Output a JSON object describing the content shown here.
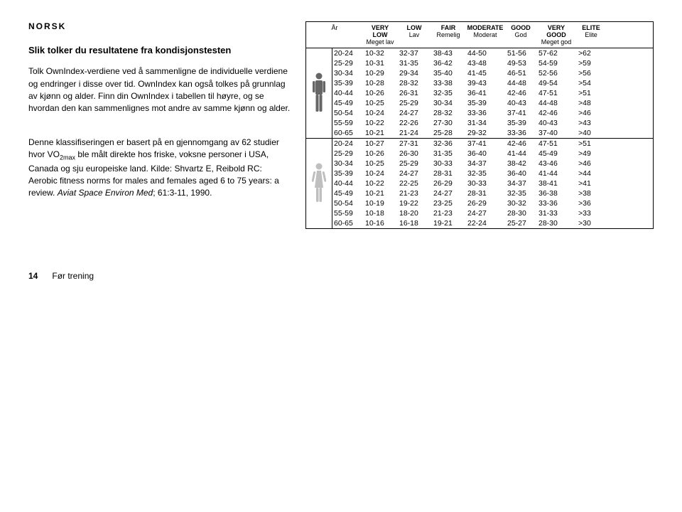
{
  "lang_label": "NORSK",
  "heading": "Slik tolker du resultatene fra kondisjonstesten",
  "para1": "Tolk OwnIndex-verdiene ved å sammenligne de individuelle verdiene og endringer i disse over tid. OwnIndex kan også tolkes på grunnlag av kjønn og alder. Finn din OwnIndex i tabellen til høyre, og se hvordan den kan sammenlignes mot andre av samme kjønn og alder.",
  "para2_pre": "Denne klassifiseringen er basert på en gjennomgang av 62 studier hvor VO",
  "para2_sub": "2max",
  "para2_post": " ble målt direkte hos friske, voksne personer i USA, Canada og sju europeiske land. Kilde: Shvartz E, Reibold RC: Aerobic fitness norms for males and females aged 6 to 75 years: a review.",
  "para2_italic": "Aviat Space Environ Med",
  "para2_tail": "; 61:3-11, 1990.",
  "footer_page": "14",
  "footer_text": "Før trening",
  "table": {
    "headers": [
      {
        "en": "",
        "no": "År",
        "key": "age"
      },
      {
        "en": "VERY LOW",
        "no": "Meget lav",
        "key": "vl"
      },
      {
        "en": "LOW",
        "no": "Lav",
        "key": "lo"
      },
      {
        "en": "FAIR",
        "no": "Remelig",
        "key": "fa"
      },
      {
        "en": "MODERATE",
        "no": "Moderat",
        "key": "mo"
      },
      {
        "en": "GOOD",
        "no": "God",
        "key": "go"
      },
      {
        "en": "VERY GOOD",
        "no": "Meget god",
        "key": "vg"
      },
      {
        "en": "ELITE",
        "no": "Elite",
        "key": "el"
      }
    ],
    "male_color": "#666666",
    "female_color": "#bfbfbf",
    "male": [
      {
        "age": "20-24",
        "vl": "10-32",
        "lo": "32-37",
        "fa": "38-43",
        "mo": "44-50",
        "go": "51-56",
        "vg": "57-62",
        "el": ">62"
      },
      {
        "age": "25-29",
        "vl": "10-31",
        "lo": "31-35",
        "fa": "36-42",
        "mo": "43-48",
        "go": "49-53",
        "vg": "54-59",
        "el": ">59"
      },
      {
        "age": "30-34",
        "vl": "10-29",
        "lo": "29-34",
        "fa": "35-40",
        "mo": "41-45",
        "go": "46-51",
        "vg": "52-56",
        "el": ">56"
      },
      {
        "age": "35-39",
        "vl": "10-28",
        "lo": "28-32",
        "fa": "33-38",
        "mo": "39-43",
        "go": "44-48",
        "vg": "49-54",
        "el": ">54"
      },
      {
        "age": "40-44",
        "vl": "10-26",
        "lo": "26-31",
        "fa": "32-35",
        "mo": "36-41",
        "go": "42-46",
        "vg": "47-51",
        "el": ">51"
      },
      {
        "age": "45-49",
        "vl": "10-25",
        "lo": "25-29",
        "fa": "30-34",
        "mo": "35-39",
        "go": "40-43",
        "vg": "44-48",
        "el": ">48"
      },
      {
        "age": "50-54",
        "vl": "10-24",
        "lo": "24-27",
        "fa": "28-32",
        "mo": "33-36",
        "go": "37-41",
        "vg": "42-46",
        "el": ">46"
      },
      {
        "age": "55-59",
        "vl": "10-22",
        "lo": "22-26",
        "fa": "27-30",
        "mo": "31-34",
        "go": "35-39",
        "vg": "40-43",
        "el": ">43"
      },
      {
        "age": "60-65",
        "vl": "10-21",
        "lo": "21-24",
        "fa": "25-28",
        "mo": "29-32",
        "go": "33-36",
        "vg": "37-40",
        "el": ">40"
      }
    ],
    "female": [
      {
        "age": "20-24",
        "vl": "10-27",
        "lo": "27-31",
        "fa": "32-36",
        "mo": "37-41",
        "go": "42-46",
        "vg": "47-51",
        "el": ">51"
      },
      {
        "age": "25-29",
        "vl": "10-26",
        "lo": "26-30",
        "fa": "31-35",
        "mo": "36-40",
        "go": "41-44",
        "vg": "45-49",
        "el": ">49"
      },
      {
        "age": "30-34",
        "vl": "10-25",
        "lo": "25-29",
        "fa": "30-33",
        "mo": "34-37",
        "go": "38-42",
        "vg": "43-46",
        "el": ">46"
      },
      {
        "age": "35-39",
        "vl": "10-24",
        "lo": "24-27",
        "fa": "28-31",
        "mo": "32-35",
        "go": "36-40",
        "vg": "41-44",
        "el": ">44"
      },
      {
        "age": "40-44",
        "vl": "10-22",
        "lo": "22-25",
        "fa": "26-29",
        "mo": "30-33",
        "go": "34-37",
        "vg": "38-41",
        "el": ">41"
      },
      {
        "age": "45-49",
        "vl": "10-21",
        "lo": "21-23",
        "fa": "24-27",
        "mo": "28-31",
        "go": "32-35",
        "vg": "36-38",
        "el": ">38"
      },
      {
        "age": "50-54",
        "vl": "10-19",
        "lo": "19-22",
        "fa": "23-25",
        "mo": "26-29",
        "go": "30-32",
        "vg": "33-36",
        "el": ">36"
      },
      {
        "age": "55-59",
        "vl": "10-18",
        "lo": "18-20",
        "fa": "21-23",
        "mo": "24-27",
        "go": "28-30",
        "vg": "31-33",
        "el": ">33"
      },
      {
        "age": "60-65",
        "vl": "10-16",
        "lo": "16-18",
        "fa": "19-21",
        "mo": "22-24",
        "go": "25-27",
        "vg": "28-30",
        "el": ">30"
      }
    ]
  }
}
